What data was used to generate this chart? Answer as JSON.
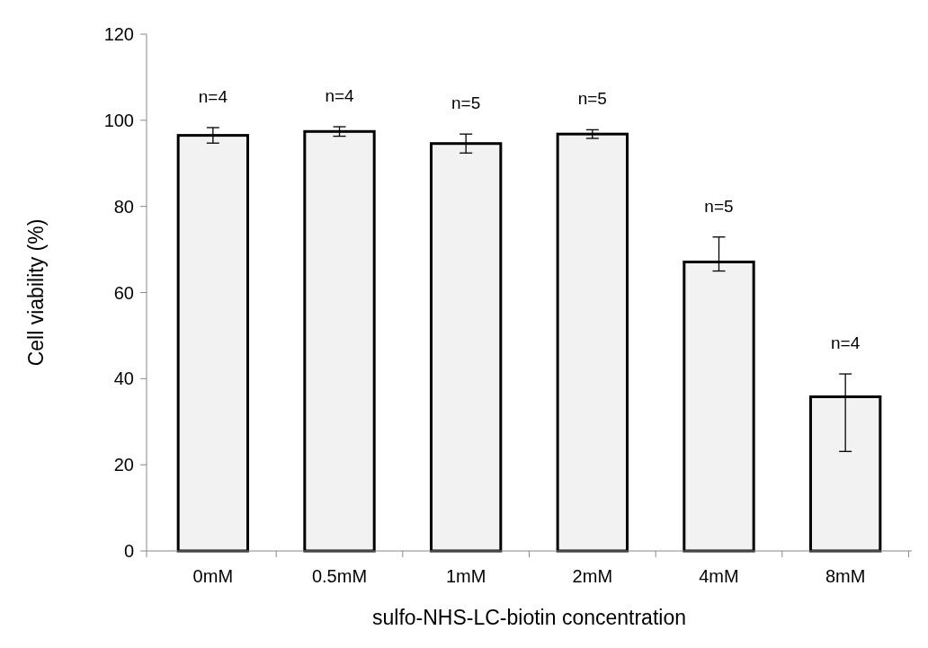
{
  "chart_data": {
    "type": "bar",
    "xlabel": "sulfo-NHS-LC-biotin concentration",
    "ylabel": "Cell viability (%)",
    "categories": [
      "0mM",
      "0.5mM",
      "1mM",
      "2mM",
      "4mM",
      "8mM"
    ],
    "values": [
      96.5,
      97.4,
      94.6,
      96.8,
      67.1,
      35.8
    ],
    "errors": [
      1.8,
      1.1,
      2.2,
      1.0,
      [
        65.0,
        72.9
      ],
      [
        23.1,
        41.1
      ]
    ],
    "annotations": [
      "n=4",
      "n=4",
      "n=5",
      "n=5",
      "n=5",
      "n=4"
    ],
    "color": "#f2f2f2",
    "ylim": [
      0,
      120
    ],
    "yticks": [
      0,
      20,
      40,
      60,
      80,
      100,
      120
    ],
    "grid": false
  }
}
